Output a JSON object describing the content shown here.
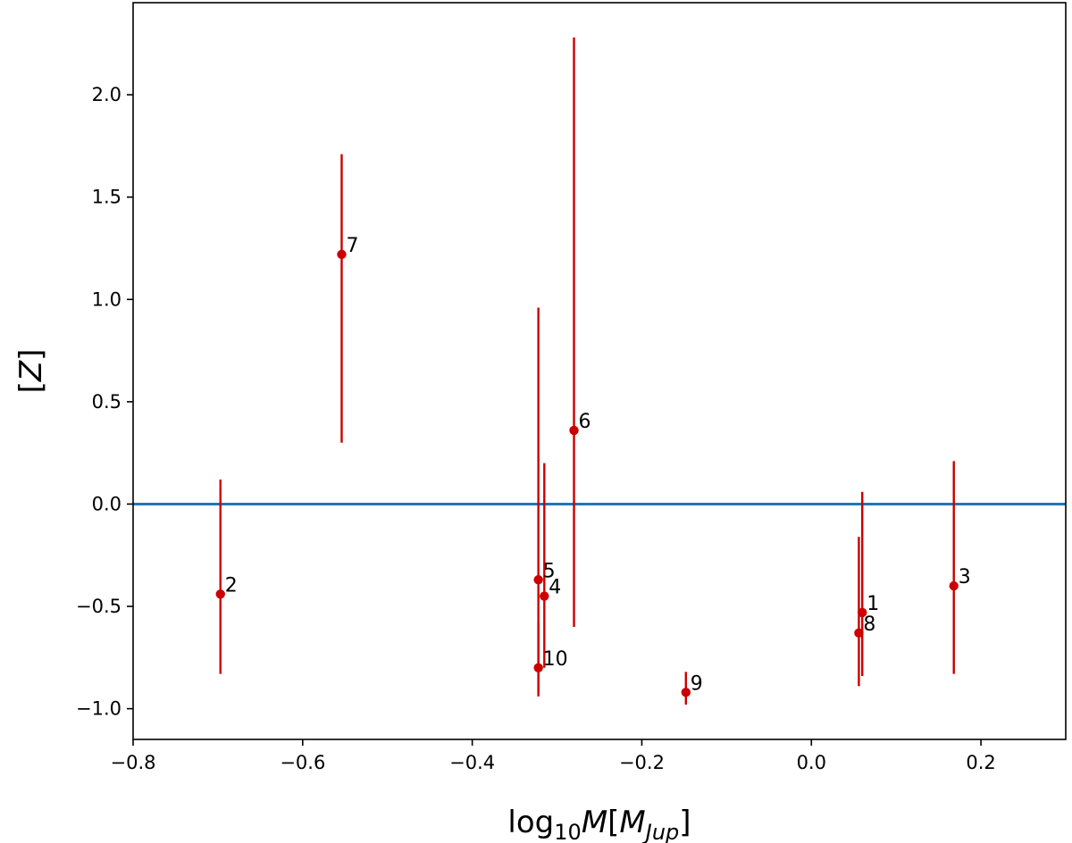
{
  "chart_data": {
    "type": "scatter",
    "title": "",
    "xlabel": "log10M[MJup]",
    "ylabel": "[Z]",
    "xlim": [
      -0.8,
      0.3
    ],
    "ylim": [
      -1.15,
      2.45
    ],
    "xticks": [
      -0.8,
      -0.6,
      -0.4,
      -0.2,
      0.0,
      0.2
    ],
    "xtick_labels": [
      "−0.8",
      "−0.6",
      "−0.4",
      "−0.2",
      "0.0",
      "0.2"
    ],
    "yticks": [
      -1.0,
      -0.5,
      0.0,
      0.5,
      1.0,
      1.5,
      2.0
    ],
    "ytick_labels": [
      "−1.0",
      "−0.5",
      "0.0",
      "0.5",
      "1.0",
      "1.5",
      "2.0"
    ],
    "grid": false,
    "reference_line": {
      "y": 0.0,
      "color": "#1f77b4"
    },
    "point_color": "#cc0000",
    "points": [
      {
        "label": "1",
        "x": 0.06,
        "y": -0.53,
        "ylow": -0.84,
        "yhigh": 0.06
      },
      {
        "label": "2",
        "x": -0.697,
        "y": -0.44,
        "ylow": -0.83,
        "yhigh": 0.12
      },
      {
        "label": "3",
        "x": 0.168,
        "y": -0.4,
        "ylow": -0.83,
        "yhigh": 0.21
      },
      {
        "label": "4",
        "x": -0.315,
        "y": -0.45,
        "ylow": -0.8,
        "yhigh": 0.2
      },
      {
        "label": "5",
        "x": -0.322,
        "y": -0.37,
        "ylow": -0.92,
        "yhigh": 0.96
      },
      {
        "label": "6",
        "x": -0.28,
        "y": 0.36,
        "ylow": -0.6,
        "yhigh": 2.28
      },
      {
        "label": "7",
        "x": -0.554,
        "y": 1.22,
        "ylow": 0.3,
        "yhigh": 1.71
      },
      {
        "label": "8",
        "x": 0.056,
        "y": -0.63,
        "ylow": -0.89,
        "yhigh": -0.16
      },
      {
        "label": "9",
        "x": -0.148,
        "y": -0.92,
        "ylow": -0.98,
        "yhigh": -0.82
      },
      {
        "label": "10",
        "x": -0.322,
        "y": -0.8,
        "ylow": -0.94,
        "yhigh": -0.58
      }
    ]
  }
}
